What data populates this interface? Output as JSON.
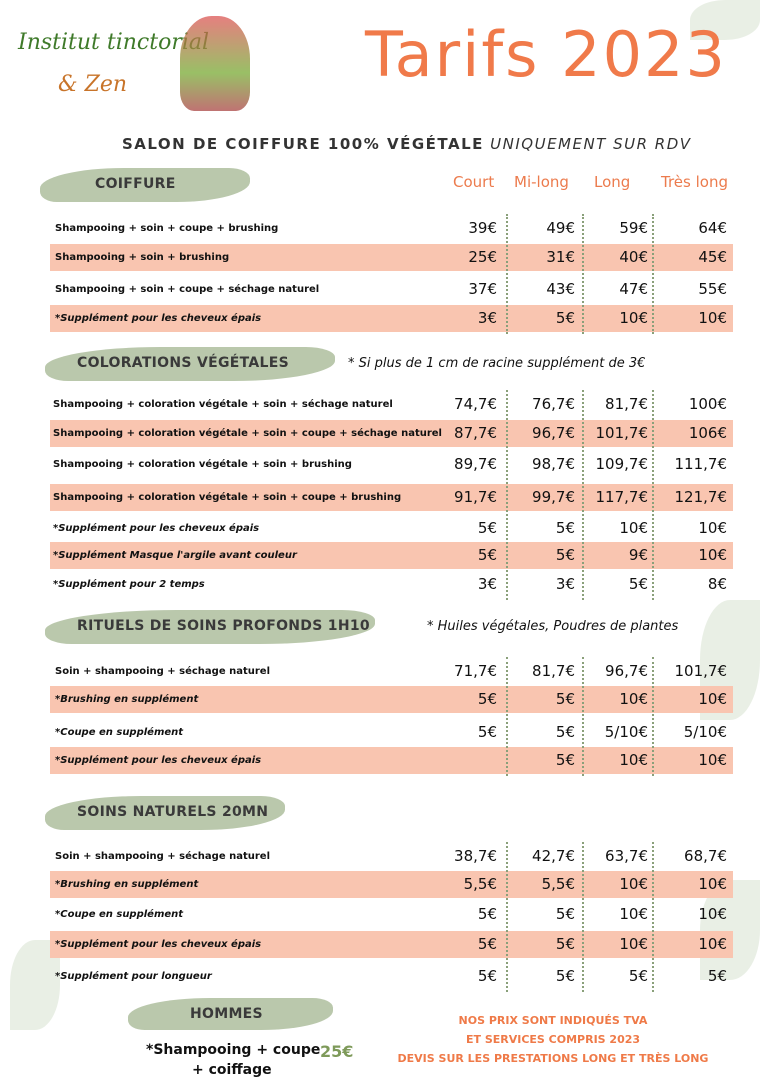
{
  "logo": {
    "line1": "Institut tinctorial",
    "line2": "& Zen"
  },
  "title": "Tarifs 2023",
  "subtitle": {
    "main": "SALON DE COIFFURE 100% VÉGÉTALE",
    "note": "UNIQUEMENT SUR RDV"
  },
  "columns": [
    "Court",
    "Mi-long",
    "Long",
    "Très long"
  ],
  "sections": [
    {
      "title": "COIFFURE",
      "rows": [
        {
          "label": "Shampooing + soin + coupe + brushing",
          "prices": [
            "39€",
            "49€",
            "59€",
            "64€"
          ]
        },
        {
          "label": "Shampooing + soin + brushing",
          "prices": [
            "25€",
            "31€",
            "40€",
            "45€"
          ]
        },
        {
          "label": "Shampooing + soin + coupe + séchage naturel",
          "prices": [
            "37€",
            "43€",
            "47€",
            "55€"
          ]
        },
        {
          "label": "*Supplément pour les cheveux épais",
          "prices": [
            "3€",
            "5€",
            "10€",
            "10€"
          ]
        }
      ]
    },
    {
      "title": "COLORATIONS VÉGÉTALES",
      "note": "* Si plus de 1 cm de racine supplément de 3€",
      "rows": [
        {
          "label": "Shampooing + coloration végétale + soin + séchage naturel",
          "prices": [
            "74,7€",
            "76,7€",
            "81,7€",
            "100€"
          ]
        },
        {
          "label": "Shampooing + coloration végétale + soin + coupe + séchage naturel",
          "prices": [
            "87,7€",
            "96,7€",
            "101,7€",
            "106€"
          ]
        },
        {
          "label": "Shampooing + coloration végétale + soin + brushing",
          "prices": [
            "89,7€",
            "98,7€",
            "109,7€",
            "111,7€"
          ]
        },
        {
          "label": "Shampooing + coloration végétale + soin + coupe + brushing",
          "prices": [
            "91,7€",
            "99,7€",
            "117,7€",
            "121,7€"
          ]
        },
        {
          "label": "*Supplément pour les cheveux épais",
          "prices": [
            "5€",
            "5€",
            "10€",
            "10€"
          ]
        },
        {
          "label": "*Supplément Masque l'argile avant couleur",
          "prices": [
            "5€",
            "5€",
            "9€",
            "10€"
          ]
        },
        {
          "label": "*Supplément pour 2 temps",
          "prices": [
            "3€",
            "3€",
            "5€",
            "8€"
          ]
        }
      ]
    },
    {
      "title": "RITUELS DE SOINS PROFONDS 1H10",
      "note": "* Huiles végétales, Poudres de plantes",
      "rows": [
        {
          "label": "Soin + shampooing + séchage naturel",
          "prices": [
            "71,7€",
            "81,7€",
            "96,7€",
            "101,7€"
          ]
        },
        {
          "label": "*Brushing en supplément",
          "prices": [
            "5€",
            "5€",
            "10€",
            "10€"
          ]
        },
        {
          "label": "*Coupe en supplément",
          "prices": [
            "5€",
            "5€",
            "5/10€",
            "5/10€"
          ]
        },
        {
          "label": "*Supplément pour les cheveux épais",
          "prices": [
            null,
            "5€",
            "10€",
            "10€"
          ]
        }
      ]
    },
    {
      "title": "SOINS NATURELS 20MN",
      "rows": [
        {
          "label": "Soin + shampooing + séchage naturel",
          "prices": [
            "38,7€",
            "42,7€",
            "63,7€",
            "68,7€"
          ]
        },
        {
          "label": "*Brushing en supplément",
          "prices": [
            "5,5€",
            "5,5€",
            "10€",
            "10€"
          ]
        },
        {
          "label": "*Coupe en supplément",
          "prices": [
            "5€",
            "5€",
            "10€",
            "10€"
          ]
        },
        {
          "label": "*Supplément pour les cheveux épais",
          "prices": [
            "5€",
            "5€",
            "10€",
            "10€"
          ]
        },
        {
          "label": "*Supplément pour longueur",
          "prices": [
            "5€",
            "5€",
            "5€",
            "5€"
          ]
        }
      ]
    }
  ],
  "hommes": {
    "title": "HOMMES",
    "label_line1": "*Shampooing + coupe",
    "label_line2": "+ coiffage",
    "price": "25€"
  },
  "footer": [
    "NOS PRIX SONT INDIQUÉS TVA",
    "ET SERVICES COMPRIS 2023",
    "DEVIS SUR LES PRESTATIONS LONG ET TRÈS LONG"
  ]
}
